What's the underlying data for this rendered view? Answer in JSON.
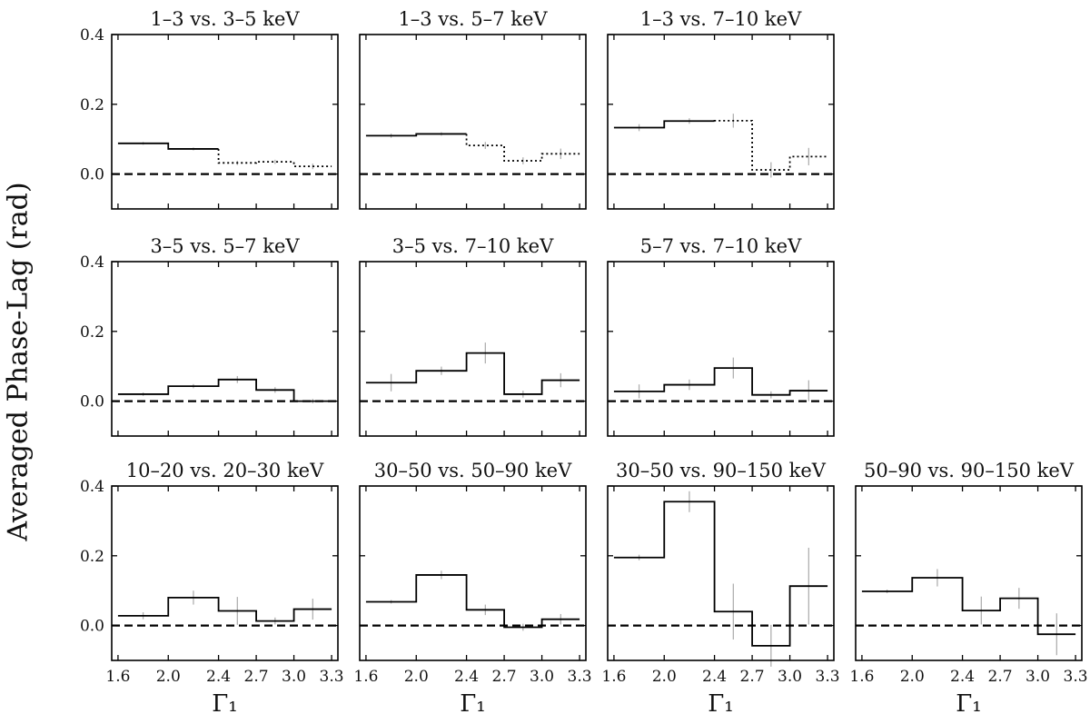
{
  "chart_data": {
    "type": "line",
    "style": "step",
    "ylabel": "Averaged Phase-Lag (rad)",
    "xlabel": "Γ₁",
    "bin_edges": [
      1.6,
      2.0,
      2.4,
      2.7,
      3.0,
      3.3
    ],
    "bin_centers": [
      1.8,
      2.2,
      2.55,
      2.85,
      3.15
    ],
    "xlim": [
      1.55,
      3.35
    ],
    "ylim": [
      -0.1,
      0.4
    ],
    "xticks": [
      1.6,
      2.0,
      2.4,
      2.7,
      3.0,
      3.3
    ],
    "xtick_labels": [
      "1.6",
      "2.0",
      "2.4",
      "2.7",
      "3.0",
      "3.3"
    ],
    "yticks": [
      0.0,
      0.2,
      0.4
    ],
    "ytick_labels": [
      "0.0",
      "0.2",
      "0.4"
    ],
    "reference_line": 0.0,
    "panels": [
      {
        "title": "1–3 vs. 3–5 keV",
        "values": [
          0.088,
          0.072,
          0.032,
          0.035,
          0.022
        ],
        "errors": [
          0.004,
          0.004,
          0.006,
          0.006,
          0.008
        ],
        "solid_bins": 2
      },
      {
        "title": "1–3 vs. 5–7 keV",
        "values": [
          0.11,
          0.115,
          0.082,
          0.038,
          0.058
        ],
        "errors": [
          0.006,
          0.005,
          0.01,
          0.01,
          0.015
        ],
        "solid_bins": 2
      },
      {
        "title": "1–3 vs. 7–10 keV",
        "values": [
          0.133,
          0.152,
          0.153,
          0.012,
          0.05
        ],
        "errors": [
          0.01,
          0.008,
          0.02,
          0.022,
          0.025
        ],
        "solid_bins": 2
      },
      {
        "title": "3–5 vs. 5–7 keV",
        "values": [
          0.02,
          0.043,
          0.062,
          0.032,
          0.0
        ],
        "errors": [
          0.005,
          0.006,
          0.01,
          0.008,
          0.006
        ],
        "solid_bins": 5
      },
      {
        "title": "3–5 vs. 7–10 keV",
        "values": [
          0.053,
          0.087,
          0.138,
          0.02,
          0.06
        ],
        "errors": [
          0.025,
          0.012,
          0.03,
          0.01,
          0.02
        ],
        "solid_bins": 5
      },
      {
        "title": "5–7 vs. 7–10 keV",
        "values": [
          0.028,
          0.047,
          0.095,
          0.018,
          0.03
        ],
        "errors": [
          0.02,
          0.015,
          0.03,
          0.01,
          0.03
        ],
        "solid_bins": 5
      },
      {
        "title": "10–20 vs. 20–30 keV",
        "values": [
          0.028,
          0.08,
          0.042,
          0.013,
          0.047
        ],
        "errors": [
          0.01,
          0.02,
          0.04,
          0.01,
          0.03
        ],
        "solid_bins": 5
      },
      {
        "title": "30–50 vs. 50–90 keV",
        "values": [
          0.068,
          0.145,
          0.045,
          -0.005,
          0.018
        ],
        "errors": [
          0.005,
          0.012,
          0.015,
          0.01,
          0.015
        ],
        "solid_bins": 5
      },
      {
        "title": "30–50 vs. 90–150 keV",
        "values": [
          0.195,
          0.355,
          0.04,
          -0.058,
          0.113
        ],
        "errors": [
          0.008,
          0.03,
          0.08,
          0.06,
          0.11
        ],
        "solid_bins": 5
      },
      {
        "title": "50–90 vs. 90–150 keV",
        "values": [
          0.098,
          0.137,
          0.043,
          0.078,
          -0.025
        ],
        "errors": [
          0.005,
          0.025,
          0.04,
          0.03,
          0.06
        ],
        "solid_bins": 5
      }
    ]
  }
}
